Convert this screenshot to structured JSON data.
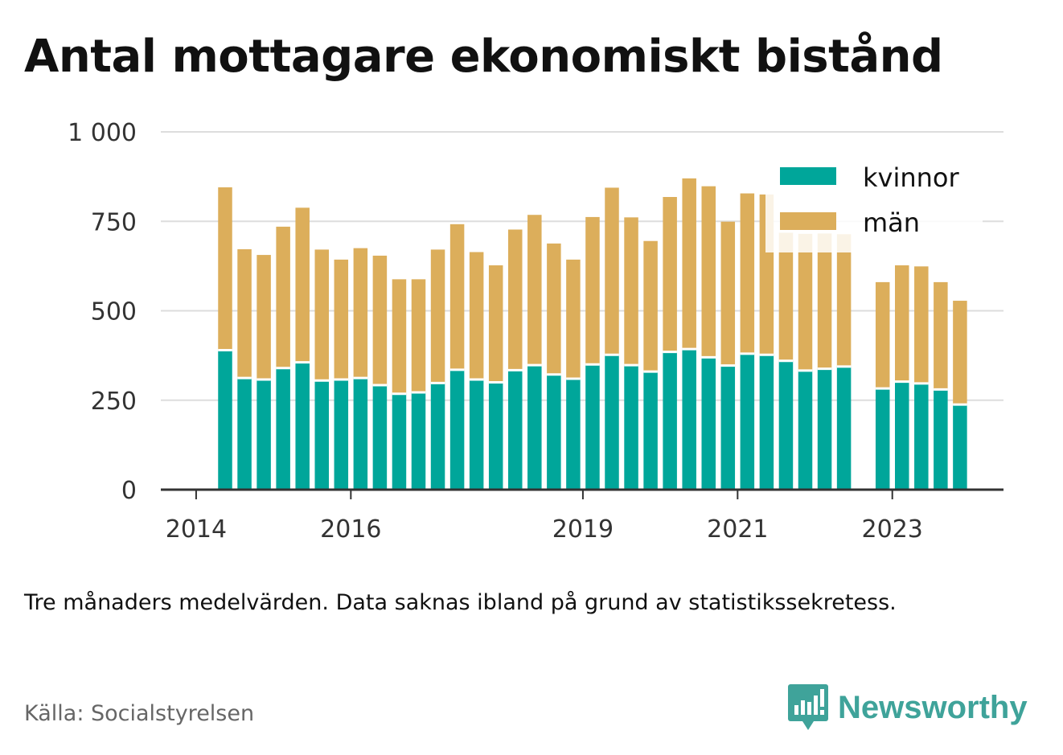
{
  "title": "Antal mottagare ekonomiskt bistånd",
  "note": "Tre månaders medelvärden. Data saknas ibland på grund av statistikssekretess.",
  "source": "Källa: Socialstyrelsen",
  "brand": "Newsworthy",
  "colors": {
    "kvinnor": "#00a69a",
    "man": "#dcae5b",
    "grid": "#dddddd",
    "axis": "#333333",
    "brand": "#3fa39a"
  },
  "chart_data": {
    "type": "bar",
    "stacked": true,
    "title": "Antal mottagare ekonomiskt bistånd",
    "ylim": [
      0,
      1000
    ],
    "y_ticks": [
      "0",
      "250",
      "500",
      "750",
      "1 000"
    ],
    "x_ticks": [
      "2014",
      "2016",
      "2019",
      "2021",
      "2023"
    ],
    "grid": true,
    "legend_position": "top-right",
    "categories": [
      "2014 Q2",
      "2014 Q3",
      "2014 Q4",
      "2015 Q1",
      "2015 Q2",
      "2015 Q3",
      "2015 Q4",
      "2016 Q1",
      "2016 Q2",
      "2016 Q3",
      "2016 Q4",
      "2017 Q1",
      "2017 Q2",
      "2017 Q3",
      "2017 Q4",
      "2018 Q1",
      "2018 Q2",
      "2018 Q3",
      "2018 Q4",
      "2019 Q1",
      "2019 Q2",
      "2019 Q3",
      "2019 Q4",
      "2020 Q1",
      "2020 Q2",
      "2020 Q3",
      "2020 Q4",
      "2021 Q1",
      "2021 Q2",
      "2021 Q3",
      "2021 Q4",
      "2022 Q1",
      "2022 Q2",
      "2022 Q3",
      "2022 Q4",
      "2023 Q1",
      "2023 Q2",
      "2023 Q3",
      "2023 Q4"
    ],
    "series": [
      {
        "name": "kvinnor",
        "values": [
          390,
          312,
          308,
          340,
          356,
          305,
          308,
          312,
          292,
          268,
          272,
          298,
          335,
          308,
          300,
          334,
          348,
          322,
          310,
          350,
          377,
          348,
          330,
          385,
          393,
          370,
          347,
          380,
          377,
          360,
          333,
          338,
          344,
          null,
          283,
          302,
          297,
          280,
          238
        ]
      },
      {
        "name": "män",
        "values": [
          455,
          360,
          348,
          395,
          432,
          366,
          335,
          363,
          362,
          320,
          316,
          373,
          407,
          356,
          327,
          393,
          420,
          366,
          333,
          412,
          467,
          413,
          365,
          433,
          477,
          478,
          402,
          448,
          448,
          358,
          382,
          378,
          370,
          null,
          297,
          325,
          327,
          300,
          290
        ]
      }
    ]
  }
}
